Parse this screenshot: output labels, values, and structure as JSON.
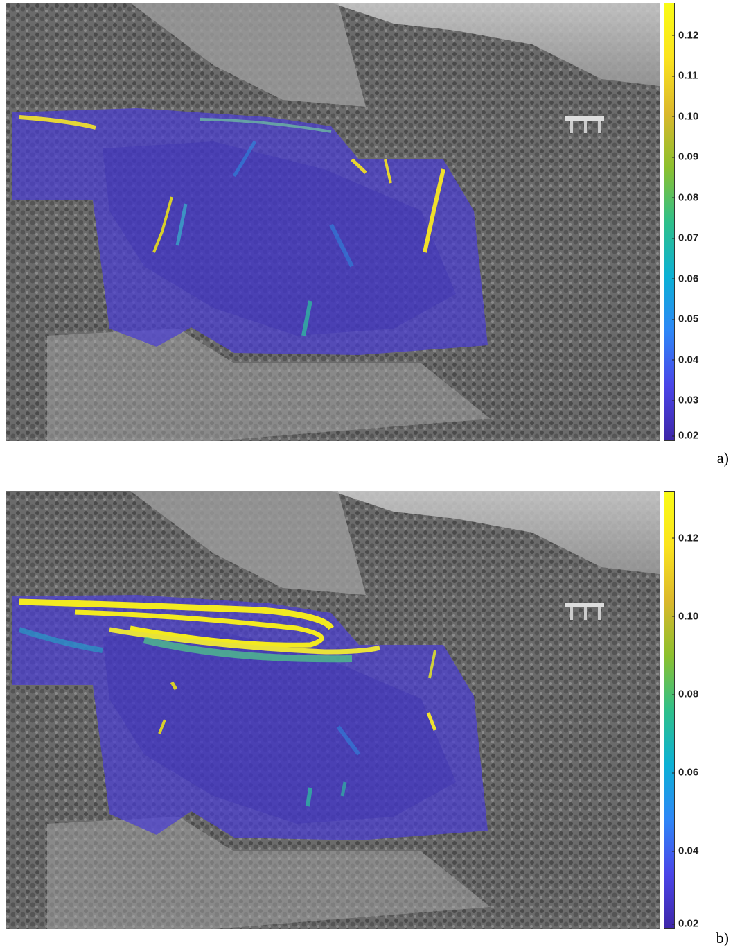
{
  "panels": [
    {
      "label": "a)",
      "colorbar": {
        "min": 0.02,
        "max": 0.128,
        "ticks": [
          "0.12",
          "0.11",
          "0.10",
          "0.09",
          "0.08",
          "0.07",
          "0.06",
          "0.05",
          "0.04",
          "0.03",
          "0.02"
        ],
        "tick_values": [
          0.12,
          0.11,
          0.1,
          0.09,
          0.08,
          0.07,
          0.06,
          0.05,
          0.04,
          0.03,
          0.02
        ],
        "colormap": [
          "#3e26a8",
          "#4a45e8",
          "#2e87f7",
          "#0cb1d5",
          "#2fc08a",
          "#8dc02e",
          "#dbb82c",
          "#fbe31e",
          "#f9fb15"
        ]
      }
    },
    {
      "label": "b)",
      "colorbar": {
        "min": 0.02,
        "max": 0.132,
        "ticks": [
          "0.12",
          "0.10",
          "0.08",
          "0.06",
          "0.04",
          "0.02"
        ],
        "tick_values": [
          0.12,
          0.1,
          0.08,
          0.06,
          0.04,
          0.02
        ],
        "colormap": [
          "#3e26a8",
          "#4a45e8",
          "#2e87f7",
          "#0cb1d5",
          "#2fc08a",
          "#8dc02e",
          "#dbb82c",
          "#fbe31e",
          "#f9fb15"
        ]
      }
    }
  ]
}
